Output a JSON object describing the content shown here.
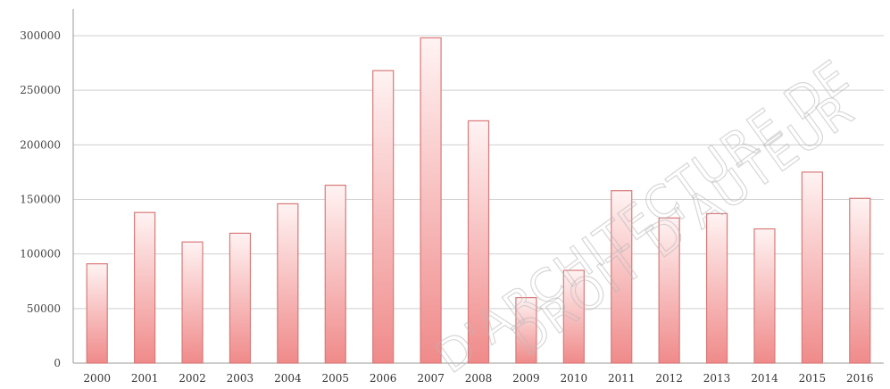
{
  "chart_data": {
    "type": "bar",
    "categories": [
      "2000",
      "2001",
      "2002",
      "2003",
      "2004",
      "2005",
      "2006",
      "2007",
      "2008",
      "2009",
      "2010",
      "2011",
      "2012",
      "2013",
      "2014",
      "2015",
      "2016"
    ],
    "values": [
      91000,
      138000,
      111000,
      119000,
      146000,
      163000,
      268000,
      298000,
      222000,
      60000,
      85000,
      158000,
      133000,
      137000,
      123000,
      175000,
      151000
    ],
    "yticks": [
      "0",
      "50000",
      "100000",
      "150000",
      "200000",
      "250000",
      "300000"
    ],
    "ylim": [
      0,
      300000
    ],
    "grid": true,
    "bar_color": "#f08a8a",
    "title": "",
    "xlabel": "",
    "ylabel": ""
  },
  "watermark": {
    "line1": "D'ARCHITECTURE DE",
    "line2": "DROIT D'AUTEUR"
  }
}
